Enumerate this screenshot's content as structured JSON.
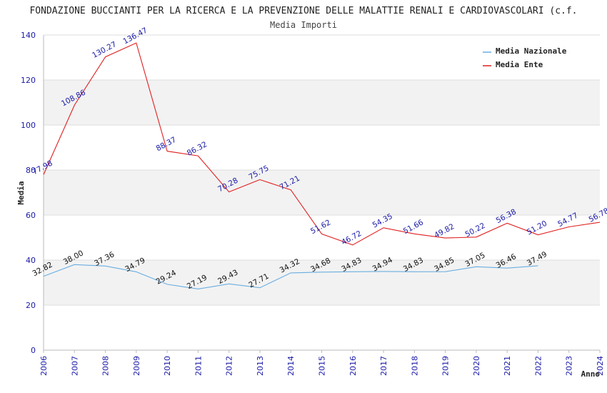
{
  "chart_data": {
    "type": "line",
    "title": "FONDAZIONE BUCCIANTI PER LA RICERCA E LA PREVENZIONE DELLE MALATTIE RENALI E CARDIOVASCOLARI (c.f.",
    "subtitle": "Media Importi",
    "xlabel": "Anno",
    "ylabel": "Media",
    "ylim": [
      0,
      140
    ],
    "yticks": [
      0,
      20,
      40,
      60,
      80,
      100,
      120,
      140
    ],
    "x": [
      "2006",
      "2007",
      "2008",
      "2009",
      "2010",
      "2011",
      "2012",
      "2013",
      "2014",
      "2015",
      "2016",
      "2017",
      "2018",
      "2019",
      "2020",
      "2021",
      "2022",
      "2023",
      "2024"
    ],
    "series": [
      {
        "name": "Media Nazionale",
        "color": "#6aaee0",
        "values": [
          32.82,
          38.0,
          37.36,
          34.79,
          29.24,
          27.19,
          29.43,
          27.71,
          34.32,
          34.68,
          34.83,
          34.94,
          34.83,
          34.85,
          37.05,
          36.46,
          37.49,
          null,
          null
        ],
        "labels": [
          "32.82",
          "38.00",
          "37.36",
          "34.79",
          "29.24",
          "27.19",
          "29.43",
          "27.71",
          "34.32",
          "34.68",
          "34.83",
          "34.94",
          "34.83",
          "34.85",
          "37.05",
          "36.46",
          "37.49",
          "",
          ""
        ]
      },
      {
        "name": "Media Ente",
        "color": "#e02020",
        "values": [
          77.98,
          108.86,
          130.27,
          136.47,
          88.37,
          86.32,
          70.28,
          75.75,
          71.21,
          51.62,
          46.72,
          54.35,
          51.66,
          49.82,
          50.22,
          56.38,
          51.2,
          54.77,
          56.78
        ],
        "labels": [
          "77.98",
          "108.86",
          "130.27",
          "136.47",
          "88.37",
          "86.32",
          "70.28",
          "75.75",
          "71.21",
          "51.62",
          "46.72",
          "54.35",
          "51.66",
          "49.82",
          "50.22",
          "56.38",
          "51.20",
          "54.77",
          "56.78"
        ]
      }
    ],
    "legend": {
      "placement": "top-right"
    },
    "grid": true,
    "band_colors": [
      "#ffffff",
      "#f2f2f2"
    ],
    "gridline_color": "#dddddd",
    "axis_color": "#bbbbbb"
  }
}
